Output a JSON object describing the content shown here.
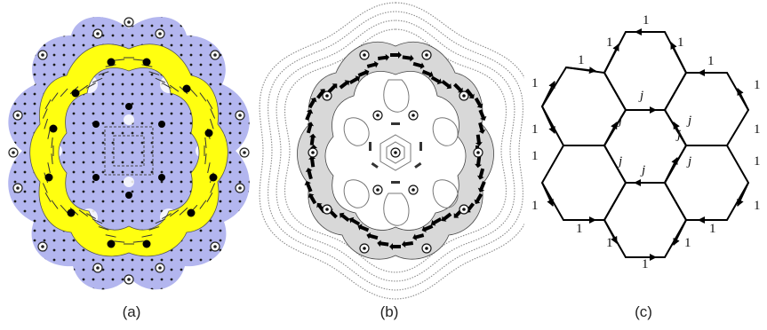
{
  "panels": [
    {
      "id": "a",
      "caption": "(a)"
    },
    {
      "id": "b",
      "caption": "(b)"
    },
    {
      "id": "c",
      "caption": "(c)"
    }
  ],
  "colors": {
    "plasmon_region": "#b3b6ef",
    "flux_yellow": "#ffff10",
    "ink": "#111111",
    "gray_contour": "#8a8a8a"
  },
  "lattice": {
    "edge_labels": [
      "1",
      "1",
      "1",
      "1",
      "1",
      "1",
      "1",
      "1",
      "1",
      "1",
      "1",
      "1",
      "1",
      "1",
      "1",
      "1",
      "1",
      "1"
    ],
    "inner_labels": [
      "j",
      "j",
      "j",
      "j",
      "j",
      "j",
      "j"
    ]
  }
}
